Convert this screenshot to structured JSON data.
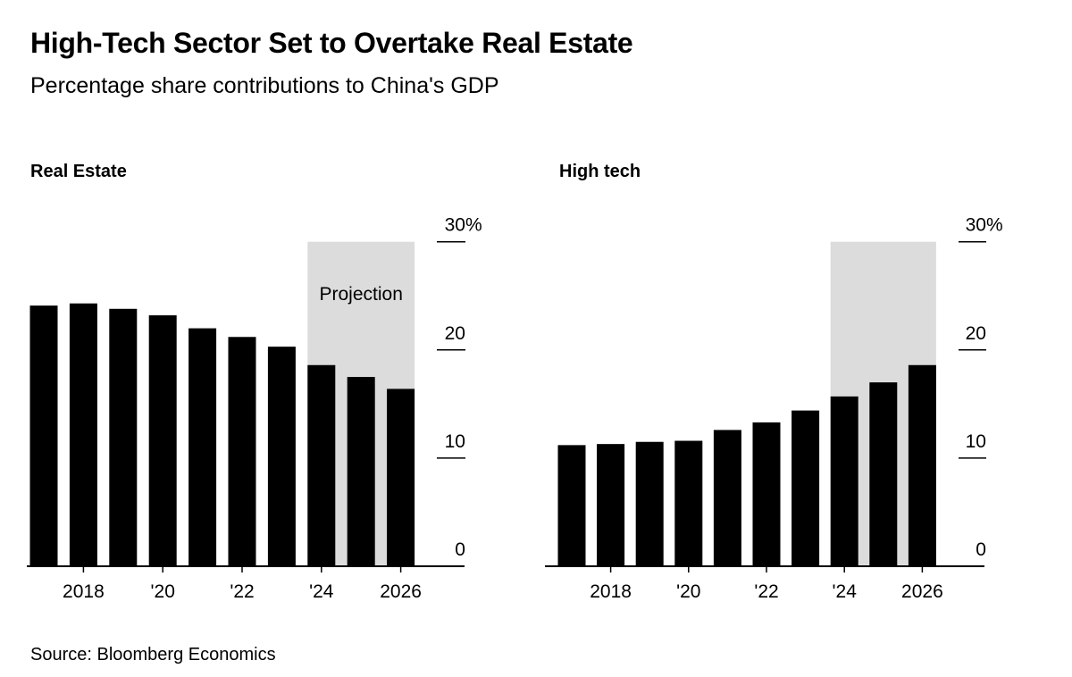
{
  "title": "High-Tech Sector Set to Overtake Real Estate",
  "subtitle": "Percentage share contributions to China's GDP",
  "source": "Source: Bloomberg Economics",
  "colors": {
    "bar": "#000000",
    "projection_shade": "#dcdcdc",
    "axis": "#000000"
  },
  "chart_data": [
    {
      "type": "bar",
      "title": "Real Estate",
      "categories": [
        2017,
        2018,
        2019,
        2020,
        2021,
        2022,
        2023,
        2024,
        2025,
        2026
      ],
      "values": [
        24.1,
        24.3,
        23.8,
        23.2,
        22.0,
        21.2,
        20.3,
        18.6,
        17.5,
        16.4
      ],
      "x_tick_labels": [
        {
          "x": 2018,
          "label": "2018"
        },
        {
          "x": 2020,
          "label": "'20"
        },
        {
          "x": 2022,
          "label": "'22"
        },
        {
          "x": 2024,
          "label": "'24"
        },
        {
          "x": 2026,
          "label": "2026"
        }
      ],
      "y_ticks": [
        {
          "value": 0,
          "label": "0"
        },
        {
          "value": 10,
          "label": "10"
        },
        {
          "value": 20,
          "label": "20"
        },
        {
          "value": 30,
          "label": "30%"
        }
      ],
      "ylim": [
        0,
        30
      ],
      "y_axis_side": "right",
      "projection": {
        "from": 2024,
        "to": 2026,
        "label": "Projection"
      }
    },
    {
      "type": "bar",
      "title": "High tech",
      "categories": [
        2017,
        2018,
        2019,
        2020,
        2021,
        2022,
        2023,
        2024,
        2025,
        2026
      ],
      "values": [
        11.2,
        11.3,
        11.5,
        11.6,
        12.6,
        13.3,
        14.4,
        15.7,
        17.0,
        18.6
      ],
      "x_tick_labels": [
        {
          "x": 2018,
          "label": "2018"
        },
        {
          "x": 2020,
          "label": "'20"
        },
        {
          "x": 2022,
          "label": "'22"
        },
        {
          "x": 2024,
          "label": "'24"
        },
        {
          "x": 2026,
          "label": "2026"
        }
      ],
      "y_ticks": [
        {
          "value": 0,
          "label": "0"
        },
        {
          "value": 10,
          "label": "10"
        },
        {
          "value": 20,
          "label": "20"
        },
        {
          "value": 30,
          "label": "30%"
        }
      ],
      "ylim": [
        0,
        30
      ],
      "y_axis_side": "right",
      "projection": {
        "from": 2024,
        "to": 2026,
        "label": ""
      }
    }
  ]
}
